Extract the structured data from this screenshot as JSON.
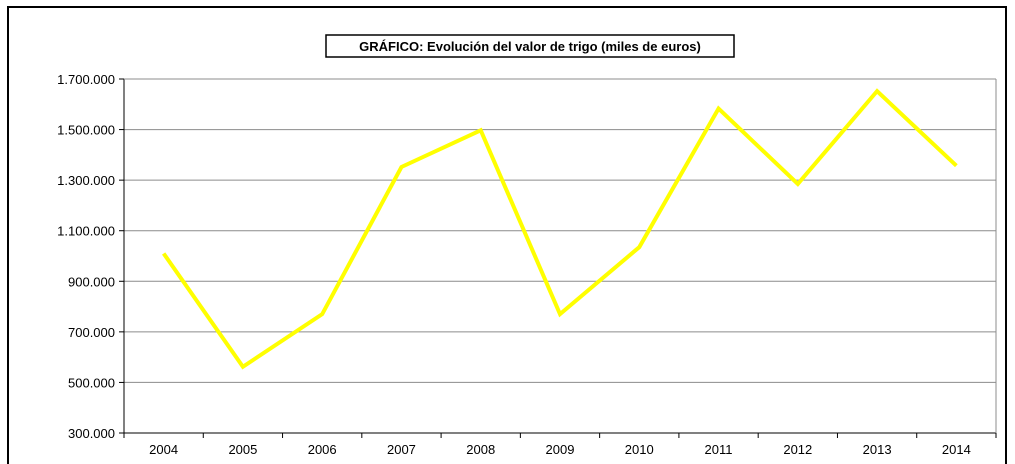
{
  "chart_data": {
    "type": "line",
    "title": "GRÁFICO: Evolución del valor de trigo (miles de euros)",
    "xlabel": "",
    "ylabel": "",
    "categories": [
      "2004",
      "2005",
      "2006",
      "2007",
      "2008",
      "2009",
      "2010",
      "2011",
      "2012",
      "2013",
      "2014"
    ],
    "series": [
      {
        "values": [
          1010000,
          562000,
          770000,
          1352000,
          1497000,
          770000,
          1035000,
          1583000,
          1285000,
          1652000,
          1357000
        ],
        "color": "#ffff00"
      }
    ],
    "ylim": [
      300000,
      1700000
    ],
    "y_ticks": [
      300000,
      500000,
      700000,
      900000,
      1100000,
      1300000,
      1500000,
      1700000
    ],
    "y_tick_labels": [
      "300.000",
      "500.000",
      "700.000",
      "900.000",
      "1.100.000",
      "1.300.000",
      "1.500.000",
      "1.700.000"
    ],
    "grid": true,
    "legend": false
  }
}
